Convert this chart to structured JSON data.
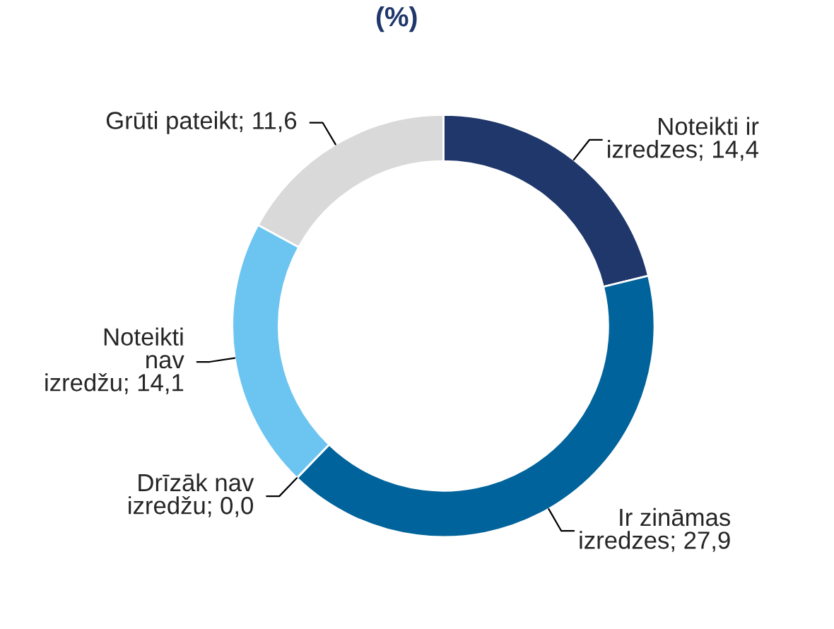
{
  "chart_data": {
    "type": "donut",
    "title": "(%)",
    "categories": [
      "Noteikti ir\nizredzes",
      "Ir zināmas\nizredzes",
      "Drīzāk nav\nizredžu",
      "Noteikti\nnav\nizredžu",
      "Grūti pateikt"
    ],
    "values": [
      14.4,
      27.9,
      0.0,
      14.1,
      11.6
    ],
    "value_labels": [
      "14,4",
      "27,9",
      "0,0",
      "14,1",
      "11,6"
    ],
    "colors": [
      "#1f376b",
      "#00639b",
      "#0a4f8a",
      "#6cc5f0",
      "#d9d9d9"
    ]
  }
}
